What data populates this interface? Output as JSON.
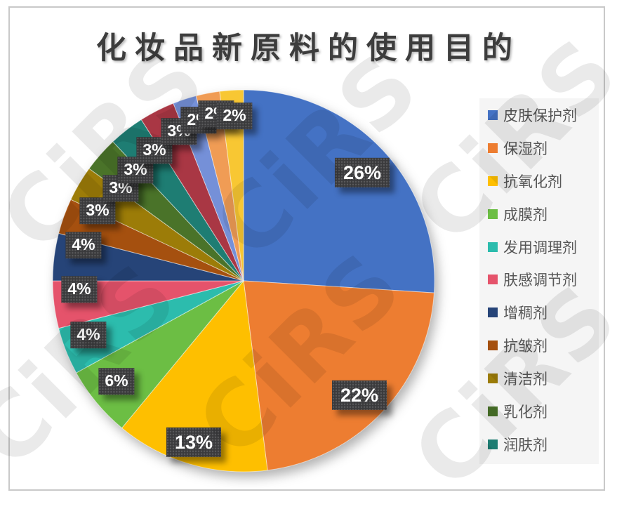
{
  "watermark": {
    "text": "CiRS"
  },
  "chart_data": {
    "type": "pie",
    "title": "化妆品新原料的使用目的",
    "direction": "clockwise",
    "start_angle_deg": 0,
    "legend_position": "right",
    "label_format": "percent",
    "label_box_color": "#3a3a3c",
    "label_text_color": "#ffffff",
    "slices": [
      {
        "label": "皮肤保护剂",
        "value": 26,
        "color": "#4472C4"
      },
      {
        "label": "保湿剂",
        "value": 22,
        "color": "#ED7D31"
      },
      {
        "label": "抗氧化剂",
        "value": 13,
        "color": "#FEBF00"
      },
      {
        "label": "成膜剂",
        "value": 6,
        "color": "#6CBE44"
      },
      {
        "label": "发用调理剂",
        "value": 4,
        "color": "#2CBCAD"
      },
      {
        "label": "肤感调节剂",
        "value": 4,
        "color": "#E5536B"
      },
      {
        "label": "增稠剂",
        "value": 4,
        "color": "#264478"
      },
      {
        "label": "抗皱剂",
        "value": 3,
        "color": "#A5500F"
      },
      {
        "label": "清洁剂",
        "value": 3,
        "color": "#9C7C08"
      },
      {
        "label": "乳化剂",
        "value": 3,
        "color": "#4A7329"
      },
      {
        "label": "润肤剂",
        "value": 3,
        "color": "#1E7D73"
      },
      {
        "label": "",
        "value": 3,
        "color": "#A93744"
      },
      {
        "label": "",
        "value": 2,
        "color": "#7590D8"
      },
      {
        "label": "",
        "value": 2,
        "color": "#F09C55"
      },
      {
        "label": "",
        "value": 2,
        "color": "#F8C733"
      }
    ],
    "legend_labels": [
      "皮肤保护剂",
      "保湿剂",
      "抗氧化剂",
      "成膜剂",
      "发用调理剂",
      "肤感调节剂",
      "增稠剂",
      "抗皱剂",
      "清洁剂",
      "乳化剂",
      "润肤剂"
    ],
    "data_labels": [
      "26%",
      "22%",
      "13%",
      "6%",
      "4%",
      "4%",
      "4%",
      "3%",
      "3%",
      "3%",
      "3%",
      "3%",
      "2%",
      "2%",
      "2%"
    ]
  }
}
